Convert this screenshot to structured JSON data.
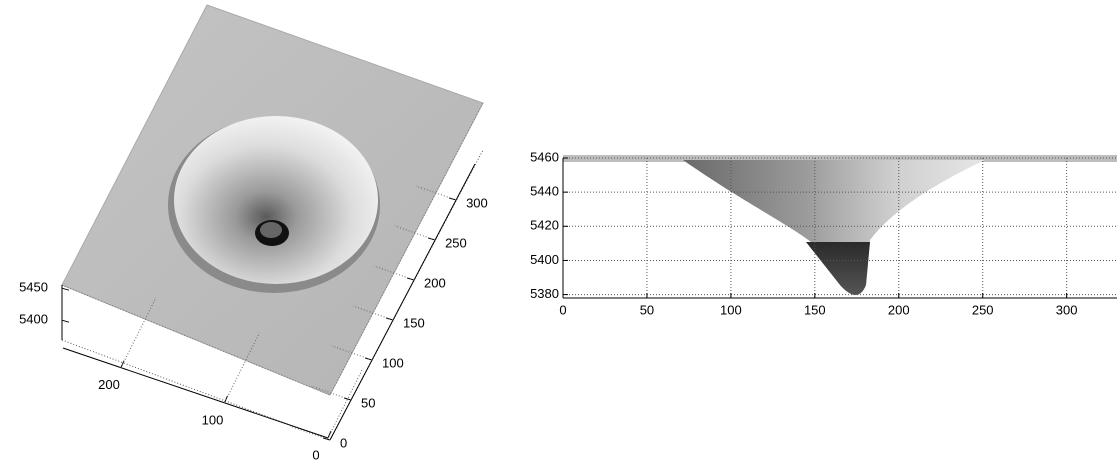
{
  "chart_data": [
    {
      "type": "surface",
      "xlim": [
        0,
        256
      ],
      "xticks": [
        0,
        100,
        200
      ],
      "ylim": [
        0,
        345
      ],
      "yticks": [
        0,
        50,
        100,
        150,
        200,
        250,
        300
      ],
      "zlim": [
        5369,
        5455
      ],
      "zticks": [
        5400,
        5450
      ],
      "color": "#bdbdbd"
    },
    {
      "type": "profile",
      "xlim": [
        0,
        330
      ],
      "xticks": [
        0,
        50,
        100,
        150,
        200,
        250,
        300
      ],
      "ylim": [
        5378,
        5460
      ],
      "yticks": [
        5380,
        5400,
        5420,
        5440,
        5460
      ],
      "grid": true,
      "color": "#bdbdbd"
    }
  ]
}
